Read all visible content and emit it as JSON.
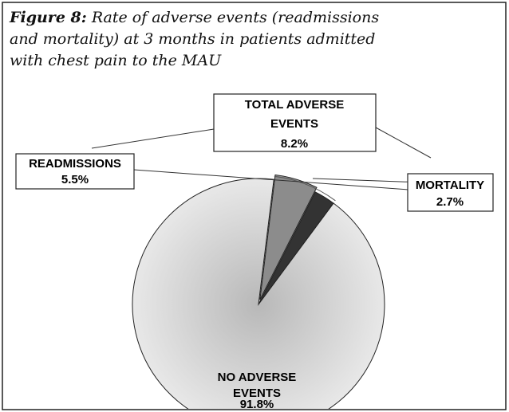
{
  "chart_data": {
    "type": "pie",
    "title_label": "Figure 8:",
    "title": "Rate of adverse events (readmissions and mortality) at 3 months in patients admitted with chest pain to the MAU",
    "categories": [
      "READMISSIONS",
      "MORTALITY",
      "NO ADVERSE EVENTS"
    ],
    "values": [
      5.5,
      2.7,
      91.8
    ],
    "value_labels": [
      "5.5%",
      "2.7%",
      "91.8%"
    ],
    "colors": [
      "#8c8c8c",
      "#333333",
      "url(#g)"
    ],
    "annotation": {
      "text": "TOTAL ADVERSE EVENTS",
      "value": 8.2,
      "value_label": "8.2%"
    }
  }
}
